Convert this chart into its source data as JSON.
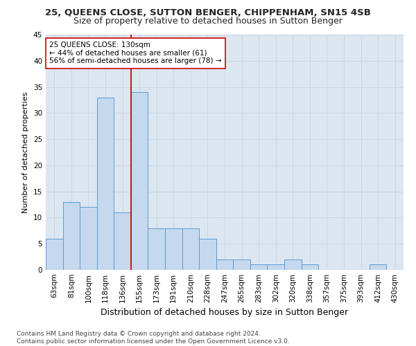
{
  "title_line1": "25, QUEENS CLOSE, SUTTON BENGER, CHIPPENHAM, SN15 4SB",
  "title_line2": "Size of property relative to detached houses in Sutton Benger",
  "xlabel": "Distribution of detached houses by size in Sutton Benger",
  "ylabel": "Number of detached properties",
  "footnote": "Contains HM Land Registry data © Crown copyright and database right 2024.\nContains public sector information licensed under the Open Government Licence v3.0.",
  "categories": [
    "63sqm",
    "81sqm",
    "100sqm",
    "118sqm",
    "136sqm",
    "155sqm",
    "173sqm",
    "191sqm",
    "210sqm",
    "228sqm",
    "247sqm",
    "265sqm",
    "283sqm",
    "302sqm",
    "320sqm",
    "338sqm",
    "357sqm",
    "375sqm",
    "393sqm",
    "412sqm",
    "430sqm"
  ],
  "values": [
    6,
    13,
    12,
    33,
    11,
    34,
    8,
    8,
    8,
    6,
    2,
    2,
    1,
    1,
    2,
    1,
    0,
    0,
    0,
    1,
    0
  ],
  "bar_color": "#c5d8ed",
  "bar_edge_color": "#5b9bd5",
  "property_label": "25 QUEENS CLOSE: 130sqm",
  "pct_smaller": 44,
  "n_smaller": 61,
  "pct_larger": 56,
  "n_larger": 78,
  "vline_x": 4.5,
  "vline_color": "#cc0000",
  "annotation_box_color": "#ffffff",
  "annotation_box_edge": "#cc0000",
  "ylim": [
    0,
    45
  ],
  "yticks": [
    0,
    5,
    10,
    15,
    20,
    25,
    30,
    35,
    40,
    45
  ],
  "grid_color": "#c8d4e3",
  "background_color": "#dce6f0",
  "title1_fontsize": 9.5,
  "title2_fontsize": 9,
  "xlabel_fontsize": 9,
  "ylabel_fontsize": 8,
  "tick_fontsize": 7.5,
  "footnote_fontsize": 6.5,
  "ann_fontsize": 7.5
}
